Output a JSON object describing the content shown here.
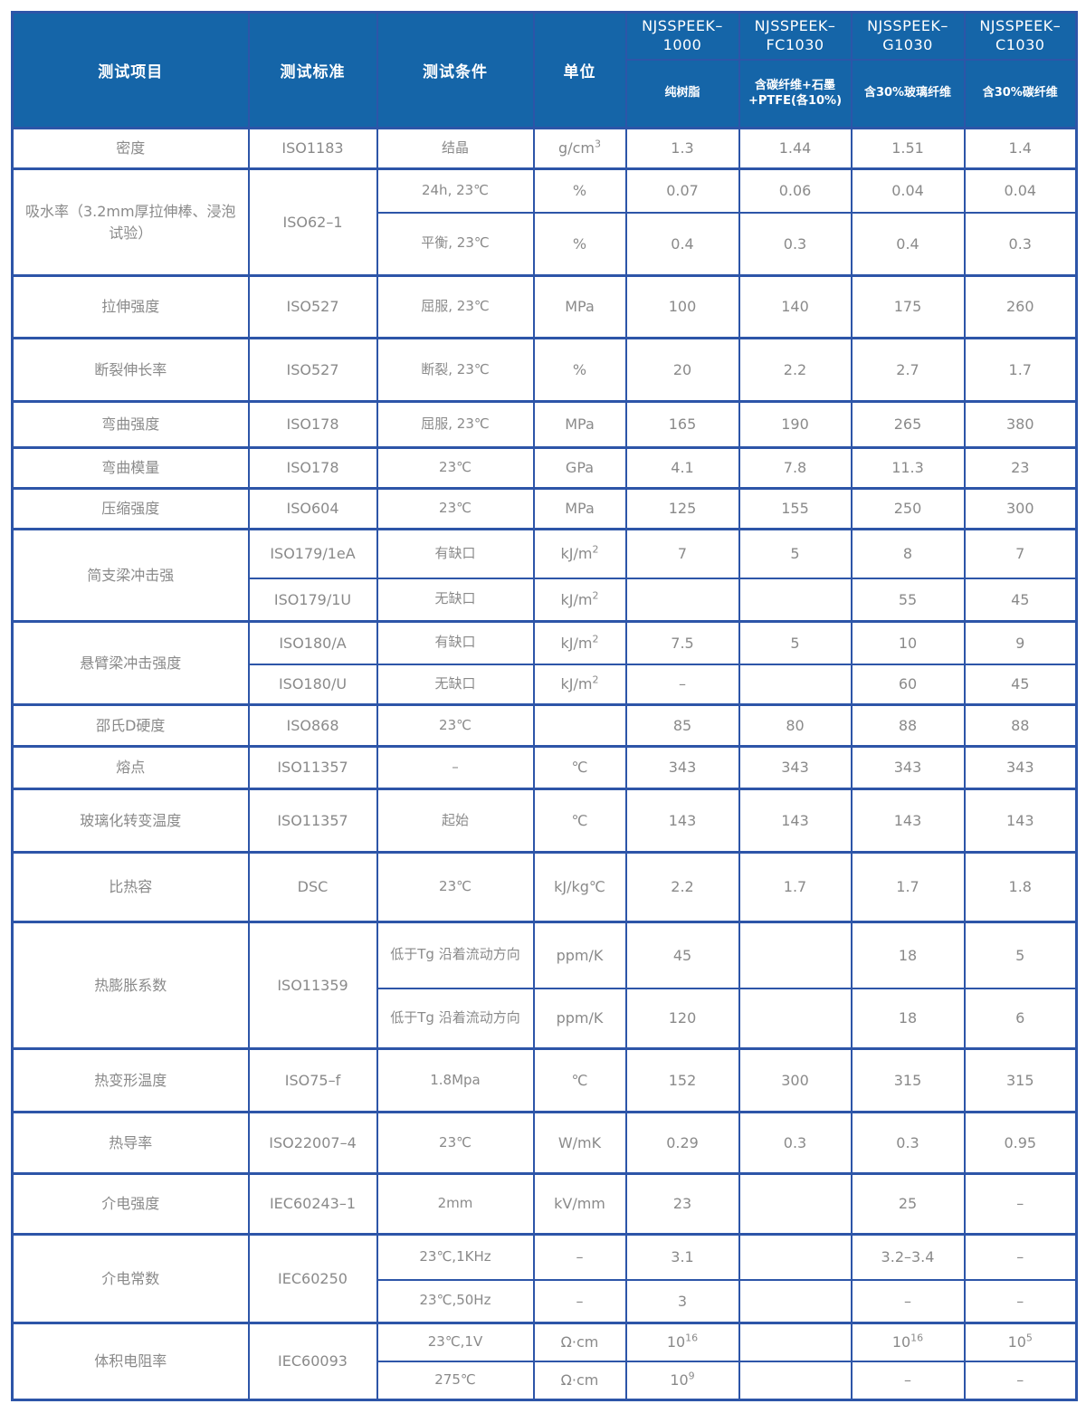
{
  "colors": {
    "header_bg": "#1565a8",
    "border_blue": "#2d55a8",
    "cell_text_gray": "#8a8a8a",
    "header_text": "#ffffff"
  },
  "header": {
    "item": "测试项目",
    "standard": "测试标准",
    "condition": "测试条件",
    "unit": "单位",
    "products": [
      {
        "name": "NJSSPEEK–\n1000",
        "desc": "纯树脂"
      },
      {
        "name": "NJSSPEEK–\nFC1030",
        "desc": "含碳纤维+石墨\n+PTFE(各10%)"
      },
      {
        "name": "NJSSPEEK–\nG1030",
        "desc": "含30%玻璃纤维"
      },
      {
        "name": "NJSSPEEK–\nC1030",
        "desc": "含30%碳纤维"
      }
    ]
  },
  "table": {
    "groups": [
      {
        "item": "密度",
        "rows": [
          {
            "standard": "ISO1183",
            "condition": "结晶",
            "unit": "g/cm^3",
            "values": [
              "1.3",
              "1.44",
              "1.51",
              "1.4"
            ]
          }
        ]
      },
      {
        "item": "吸水率（3.2mm厚拉伸棒、浸泡试验）",
        "standard": "ISO62–1",
        "rows": [
          {
            "condition": "24h, 23℃",
            "unit": "%",
            "values": [
              "0.07",
              "0.06",
              "0.04",
              "0.04"
            ]
          },
          {
            "condition": "平衡, 23℃",
            "unit": "%",
            "values": [
              "0.4",
              "0.3",
              "0.4",
              "0.3"
            ]
          }
        ]
      },
      {
        "item": "拉伸强度",
        "rows": [
          {
            "standard": "ISO527",
            "condition": "屈服, 23℃",
            "unit": "MPa",
            "values": [
              "100",
              "140",
              "175",
              "260"
            ]
          }
        ]
      },
      {
        "item": "断裂伸长率",
        "rows": [
          {
            "standard": "ISO527",
            "condition": "断裂, 23℃",
            "unit": "%",
            "values": [
              "20",
              "2.2",
              "2.7",
              "1.7"
            ]
          }
        ]
      },
      {
        "item": "弯曲强度",
        "rows": [
          {
            "standard": "ISO178",
            "condition": "屈服, 23℃",
            "unit": "MPa",
            "values": [
              "165",
              "190",
              "265",
              "380"
            ]
          }
        ]
      },
      {
        "item": "弯曲模量",
        "rows": [
          {
            "standard": "ISO178",
            "condition": "23℃",
            "unit": "GPa",
            "values": [
              "4.1",
              "7.8",
              "11.3",
              "23"
            ]
          }
        ]
      },
      {
        "item": "压缩强度",
        "rows": [
          {
            "standard": "ISO604",
            "condition": "23℃",
            "unit": "MPa",
            "values": [
              "125",
              "155",
              "250",
              "300"
            ]
          }
        ]
      },
      {
        "item": "简支梁冲击强",
        "rows": [
          {
            "standard": "ISO179/1eA",
            "condition": "有缺口",
            "unit": "kJ/m^2",
            "values": [
              "7",
              "5",
              "8",
              "7"
            ]
          },
          {
            "standard": "ISO179/1U",
            "condition": "无缺口",
            "unit": "kJ/m^2",
            "values": [
              "",
              "",
              "55",
              "45"
            ]
          }
        ]
      },
      {
        "item": "悬臂梁冲击强度",
        "rows": [
          {
            "standard": "ISO180/A",
            "condition": "有缺口",
            "unit": "kJ/m^2",
            "values": [
              "7.5",
              "5",
              "10",
              "9"
            ]
          },
          {
            "standard": "ISO180/U",
            "condition": "无缺口",
            "unit": "kJ/m^2",
            "values": [
              "–",
              "",
              "60",
              "45"
            ]
          }
        ]
      },
      {
        "item": "邵氏D硬度",
        "rows": [
          {
            "standard": "ISO868",
            "condition": "23℃",
            "unit": "",
            "values": [
              "85",
              "80",
              "88",
              "88"
            ]
          }
        ]
      },
      {
        "item": "熔点",
        "rows": [
          {
            "standard": "ISO11357",
            "condition": "–",
            "unit": "℃",
            "values": [
              "343",
              "343",
              "343",
              "343"
            ]
          }
        ]
      },
      {
        "item": "玻璃化转变温度",
        "rows": [
          {
            "standard": "ISO11357",
            "condition": "起始",
            "unit": "℃",
            "values": [
              "143",
              "143",
              "143",
              "143"
            ]
          }
        ]
      },
      {
        "item": "比热容",
        "rows": [
          {
            "standard": "DSC",
            "condition": "23℃",
            "unit": "kJ/kg℃",
            "values": [
              "2.2",
              "1.7",
              "1.7",
              "1.8"
            ]
          }
        ]
      },
      {
        "item": "热膨胀系数",
        "standard": "ISO11359",
        "rows": [
          {
            "condition": "低于Tg 沿着流动方向",
            "unit": "ppm/K",
            "values": [
              "45",
              "",
              "18",
              "5"
            ]
          },
          {
            "condition": "低于Tg 沿着流动方向",
            "unit": "ppm/K",
            "values": [
              "120",
              "",
              "18",
              "6"
            ]
          }
        ]
      },
      {
        "item": "热变形温度",
        "rows": [
          {
            "standard": "ISO75–f",
            "condition": "1.8Mpa",
            "unit": "℃",
            "values": [
              "152",
              "300",
              "315",
              "315"
            ]
          }
        ]
      },
      {
        "item": "热导率",
        "rows": [
          {
            "standard": "ISO22007–4",
            "condition": "23℃",
            "unit": "W/mK",
            "values": [
              "0.29",
              "0.3",
              "0.3",
              "0.95"
            ]
          }
        ]
      },
      {
        "item": "介电强度",
        "rows": [
          {
            "standard": "IEC60243–1",
            "condition": "2mm",
            "unit": "kV/mm",
            "values": [
              "23",
              "",
              "25",
              "–"
            ]
          }
        ]
      },
      {
        "item": "介电常数",
        "standard": "IEC60250",
        "rows": [
          {
            "condition": "23℃,1KHz",
            "unit": "–",
            "values": [
              "3.1",
              "",
              "3.2–3.4",
              "–"
            ]
          },
          {
            "condition": "23℃,50Hz",
            "unit": "–",
            "values": [
              "3",
              "",
              "–",
              "–"
            ]
          }
        ]
      },
      {
        "item": "体积电阻率",
        "standard": "IEC60093",
        "rows": [
          {
            "condition": "23℃,1V",
            "unit": "Ω·cm",
            "values": [
              "10^16",
              "",
              "10^16",
              "10^5"
            ]
          },
          {
            "condition": "275℃",
            "unit": "Ω·cm",
            "values": [
              "10^9",
              "",
              "–",
              "–"
            ]
          }
        ]
      }
    ]
  }
}
